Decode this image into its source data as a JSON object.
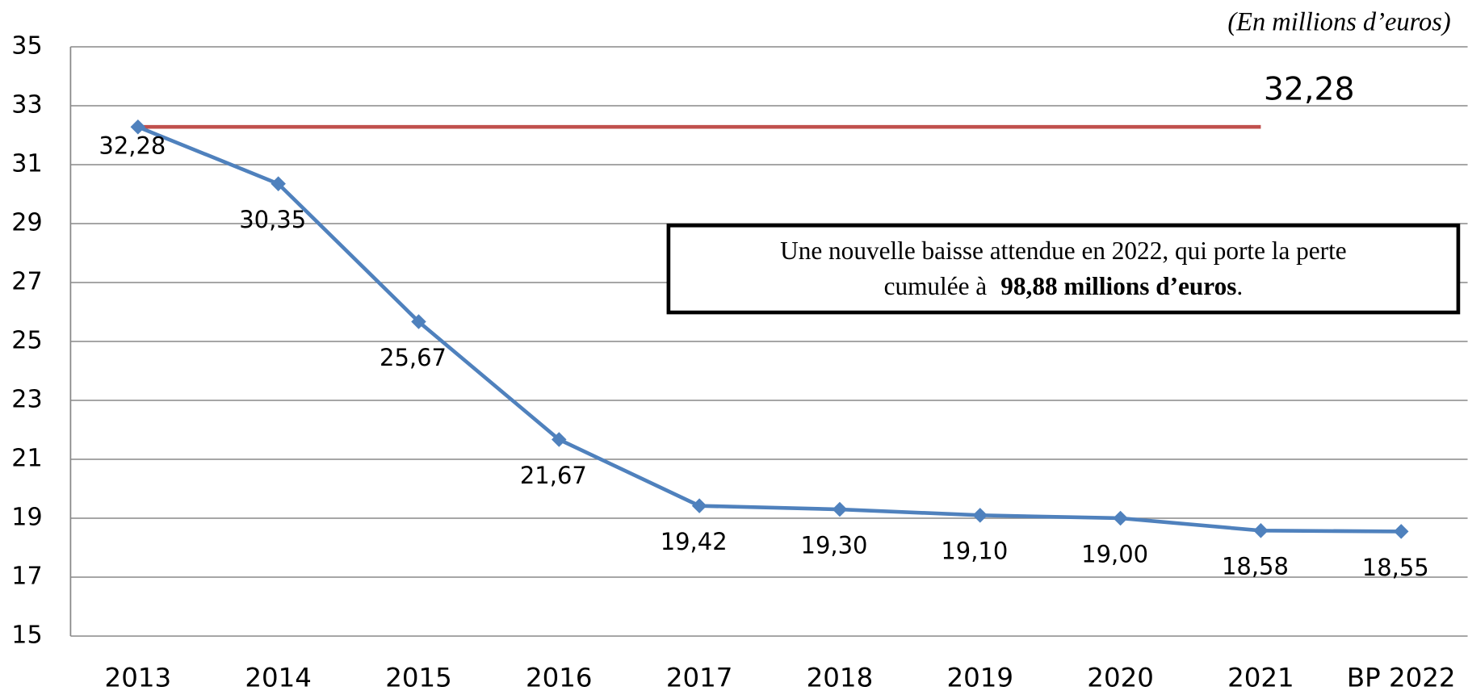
{
  "chart_data": {
    "type": "line",
    "unit_note": "(En millions d’euros)",
    "categories": [
      "2013",
      "2014",
      "2015",
      "2016",
      "2017",
      "2018",
      "2019",
      "2020",
      "2021",
      "BP 2022"
    ],
    "series": [
      {
        "color": "#4f81bd",
        "values": [
          32.28,
          30.35,
          25.67,
          21.67,
          19.42,
          19.3,
          19.1,
          19.0,
          18.58,
          18.55
        ],
        "value_labels": [
          "32,28",
          "30,35",
          "25,67",
          "21,67",
          "19,42",
          "19,30",
          "19,10",
          "19,00",
          "18,58",
          "18,55"
        ]
      }
    ],
    "reference_line": {
      "value": 32.28,
      "label": "32,28",
      "color": "#c0504d"
    },
    "annotation": {
      "line1": "Une nouvelle baisse attendue en 2022, qui porte la perte",
      "line2": "cumulée à ",
      "bold": "98,88 millions d’euros",
      "end": "."
    },
    "ylim": [
      15,
      35
    ],
    "yticks": [
      15,
      17,
      19,
      21,
      23,
      25,
      27,
      29,
      31,
      33,
      35
    ],
    "grid": true
  }
}
